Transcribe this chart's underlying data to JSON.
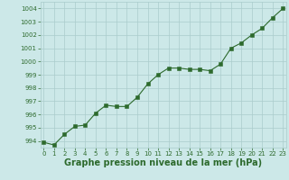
{
  "x": [
    0,
    1,
    2,
    3,
    4,
    5,
    6,
    7,
    8,
    9,
    10,
    11,
    12,
    13,
    14,
    15,
    16,
    17,
    18,
    19,
    20,
    21,
    22,
    23
  ],
  "y": [
    993.9,
    993.7,
    994.5,
    995.1,
    995.2,
    996.1,
    996.7,
    996.6,
    996.6,
    997.3,
    998.3,
    999.0,
    999.5,
    999.5,
    999.4,
    999.4,
    999.3,
    999.8,
    1001.0,
    1001.4,
    1002.0,
    1002.5,
    1003.3,
    1004.0
  ],
  "xlim": [
    -0.3,
    23.3
  ],
  "ylim": [
    993.5,
    1004.5
  ],
  "yticks": [
    994,
    995,
    996,
    997,
    998,
    999,
    1000,
    1001,
    1002,
    1003,
    1004
  ],
  "xticks": [
    0,
    1,
    2,
    3,
    4,
    5,
    6,
    7,
    8,
    9,
    10,
    11,
    12,
    13,
    14,
    15,
    16,
    17,
    18,
    19,
    20,
    21,
    22,
    23
  ],
  "xlabel": "Graphe pression niveau de la mer (hPa)",
  "line_color": "#2d6a2d",
  "marker_color": "#2d6a2d",
  "bg_color": "#cce8e8",
  "grid_color": "#aacccc",
  "tick_fontsize": 5.0,
  "xlabel_fontsize": 7.0
}
